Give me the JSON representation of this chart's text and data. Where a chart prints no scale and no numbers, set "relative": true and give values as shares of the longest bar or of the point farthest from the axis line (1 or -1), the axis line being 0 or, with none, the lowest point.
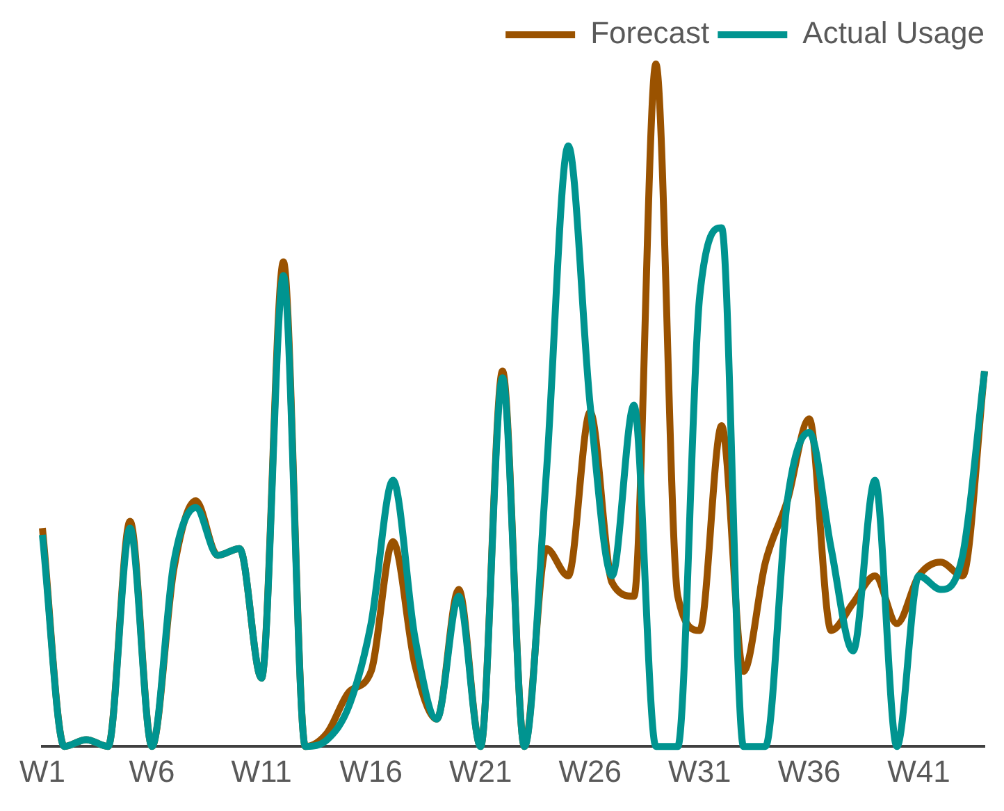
{
  "chart_data": {
    "type": "line",
    "relative": true,
    "legend": "top",
    "grid": false,
    "marker": "none",
    "line_style": "solid",
    "categories": [
      "W1",
      null,
      null,
      null,
      null,
      "W6",
      null,
      null,
      null,
      null,
      "W11",
      null,
      null,
      null,
      null,
      "W16",
      null,
      null,
      null,
      null,
      "W21",
      null,
      null,
      null,
      null,
      "W26",
      null,
      null,
      null,
      null,
      "W31",
      null,
      null,
      null,
      null,
      "W36",
      null,
      null,
      null,
      null,
      "W41",
      null,
      null,
      null
    ],
    "series": [
      {
        "name": "Forecast",
        "color": "#9a5200",
        "values": [
          0.32,
          0,
          0.01,
          0,
          0.33,
          0,
          0.26,
          0.36,
          0.28,
          0.29,
          0.1,
          0.71,
          0,
          0.02,
          0.08,
          0.11,
          0.3,
          0.12,
          0.04,
          0.23,
          0,
          0.55,
          0,
          0.29,
          0.25,
          0.49,
          0.24,
          0.22,
          1,
          0.22,
          0.17,
          0.47,
          0.11,
          0.27,
          0.36,
          0.48,
          0.17,
          0.21,
          0.25,
          0.18,
          0.25,
          0.27,
          0.25,
          0.55
        ]
      },
      {
        "name": "Actual Usage",
        "color": "#009490",
        "values": [
          0.31,
          0,
          0.01,
          0,
          0.32,
          0,
          0.27,
          0.35,
          0.28,
          0.29,
          0.1,
          0.69,
          0,
          0.01,
          0.06,
          0.18,
          0.39,
          0.16,
          0.04,
          0.22,
          0,
          0.54,
          0,
          0.4,
          0.88,
          0.5,
          0.25,
          0.5,
          0,
          0,
          0.66,
          0.76,
          0,
          0,
          0.36,
          0.46,
          0.29,
          0.14,
          0.39,
          0,
          0.25,
          0.23,
          0.28,
          0.55
        ]
      }
    ]
  }
}
